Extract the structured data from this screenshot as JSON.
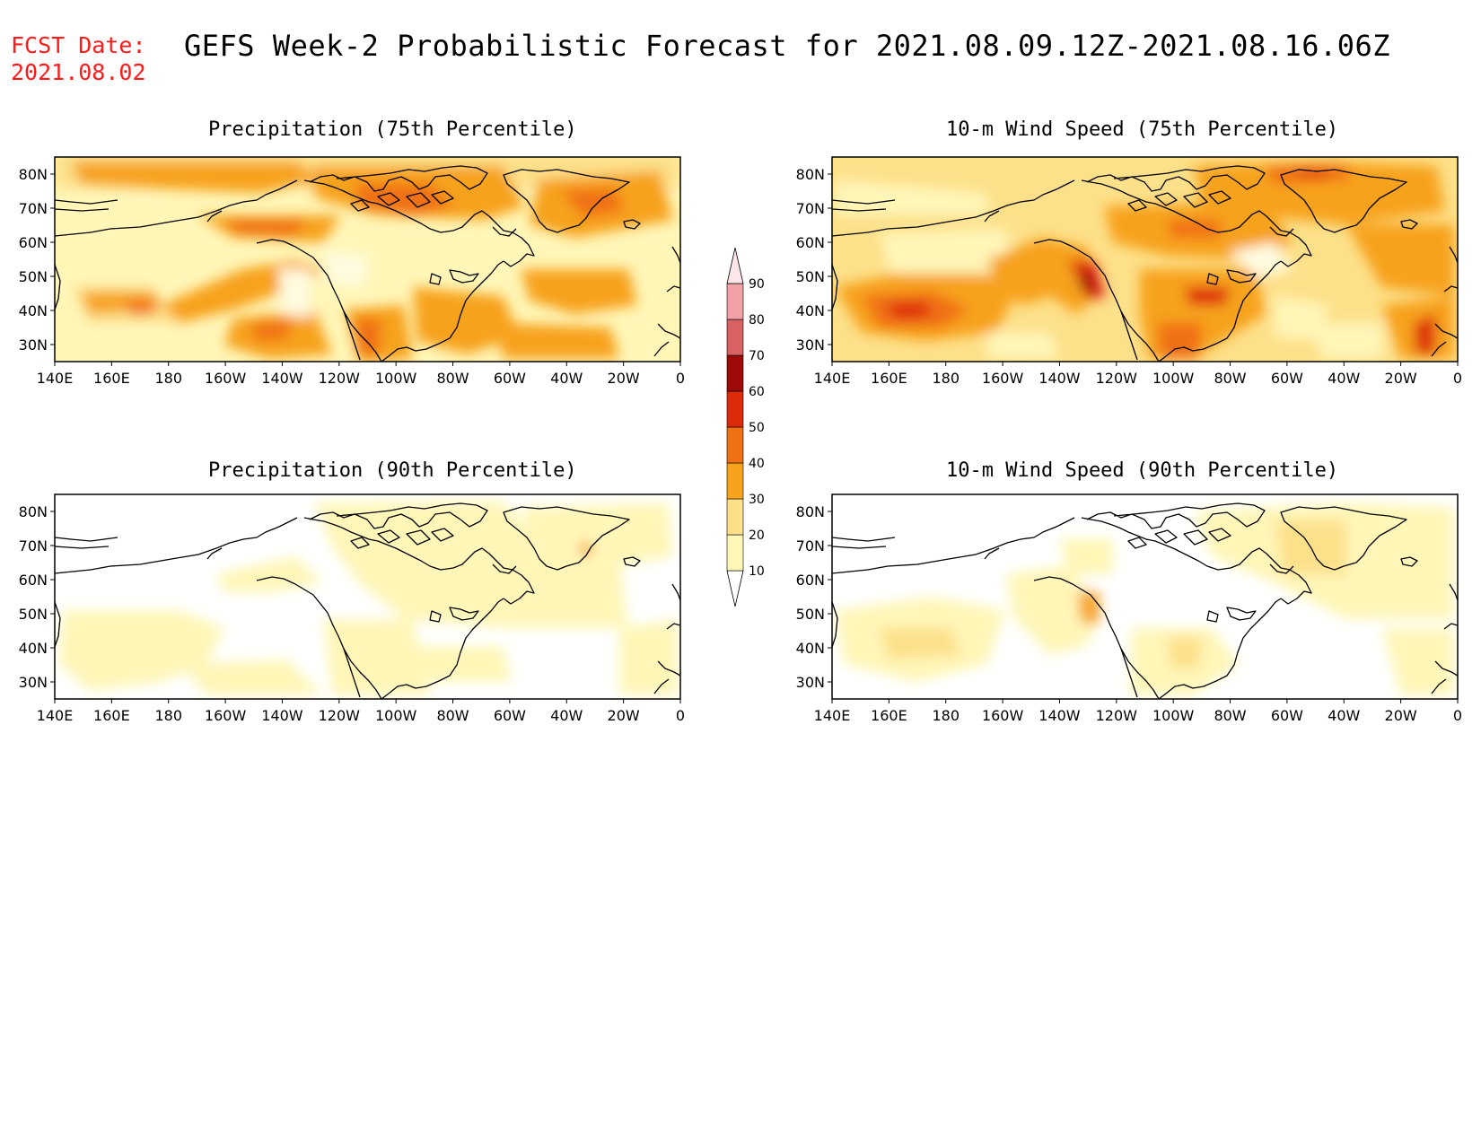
{
  "header": {
    "fcst_label": "FCST Date:",
    "fcst_date": "2021.08.02",
    "title": "GEFS Week-2 Probabilistic Forecast for 2021.08.09.12Z-2021.08.16.06Z"
  },
  "panels": [
    {
      "id": "precip75",
      "title": "Precipitation (75th Percentile)"
    },
    {
      "id": "wind75",
      "title": "10-m Wind Speed (75th Percentile)"
    },
    {
      "id": "precip90",
      "title": "Precipitation (90th Percentile)"
    },
    {
      "id": "wind90",
      "title": "10-m Wind Speed (90th Percentile)"
    }
  ],
  "axes": {
    "lat_labels": [
      "80N",
      "70N",
      "60N",
      "50N",
      "40N",
      "30N"
    ],
    "lon_labels": [
      "140E",
      "160E",
      "180",
      "160W",
      "140W",
      "120W",
      "100W",
      "80W",
      "60W",
      "40W",
      "20W",
      "0"
    ]
  },
  "colorbar": {
    "levels": [
      "10",
      "20",
      "30",
      "40",
      "50",
      "60",
      "70",
      "80",
      "90"
    ],
    "colors": [
      "#fff6b8",
      "#fde08a",
      "#f7a21c",
      "#f07014",
      "#dd2a0a",
      "#9e0a0a",
      "#d86262",
      "#f2a0a8",
      "#fde6ea"
    ]
  }
}
